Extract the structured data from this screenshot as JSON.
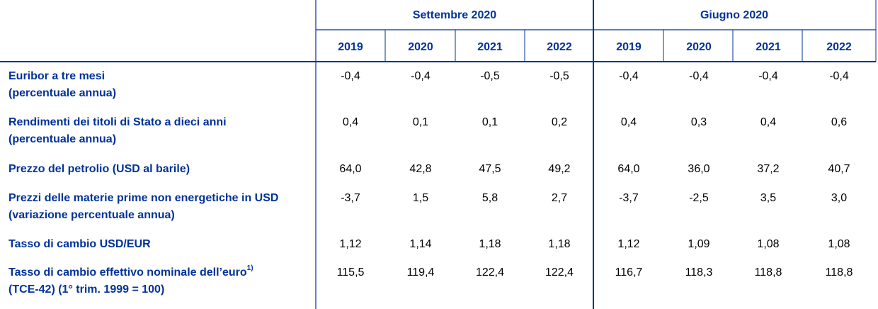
{
  "table": {
    "groups": [
      "Settembre 2020",
      "Giugno 2020"
    ],
    "years": [
      "2019",
      "2020",
      "2021",
      "2022",
      "2019",
      "2020",
      "2021",
      "2022"
    ],
    "rows": [
      {
        "label": [
          "Euribor a tre mesi",
          "(percentuale annua)"
        ],
        "values": [
          "-0,4",
          "-0,4",
          "-0,5",
          "-0,5",
          "-0,4",
          "-0,4",
          "-0,4",
          "-0,4"
        ]
      },
      {
        "label": [
          "Rendimenti dei titoli di Stato a dieci anni",
          "(percentuale annua)"
        ],
        "values": [
          "0,4",
          "0,1",
          "0,1",
          "0,2",
          "0,4",
          "0,3",
          "0,4",
          "0,6"
        ]
      },
      {
        "label": [
          "Prezzo del petrolio (USD al barile)"
        ],
        "values": [
          "64,0",
          "42,8",
          "47,5",
          "49,2",
          "64,0",
          "36,0",
          "37,2",
          "40,7"
        ]
      },
      {
        "label": [
          "Prezzi delle materie prime non energetiche in USD",
          "(variazione percentuale annua)"
        ],
        "values": [
          "-3,7",
          "1,5",
          "5,8",
          "2,7",
          "-3,7",
          "-2,5",
          "3,5",
          "3,0"
        ]
      },
      {
        "label": [
          "Tasso di cambio USD/EUR"
        ],
        "values": [
          "1,12",
          "1,14",
          "1,18",
          "1,18",
          "1,12",
          "1,09",
          "1,08",
          "1,08"
        ]
      },
      {
        "label": [
          "Tasso di cambio effettivo nominale dell’euro",
          "(TCE-42) (1° trim. 1999 = 100)"
        ],
        "note": "1)",
        "values": [
          "115,5",
          "119,4",
          "122,4",
          "122,4",
          "116,7",
          "118,3",
          "118,8",
          "118,8"
        ]
      }
    ]
  }
}
